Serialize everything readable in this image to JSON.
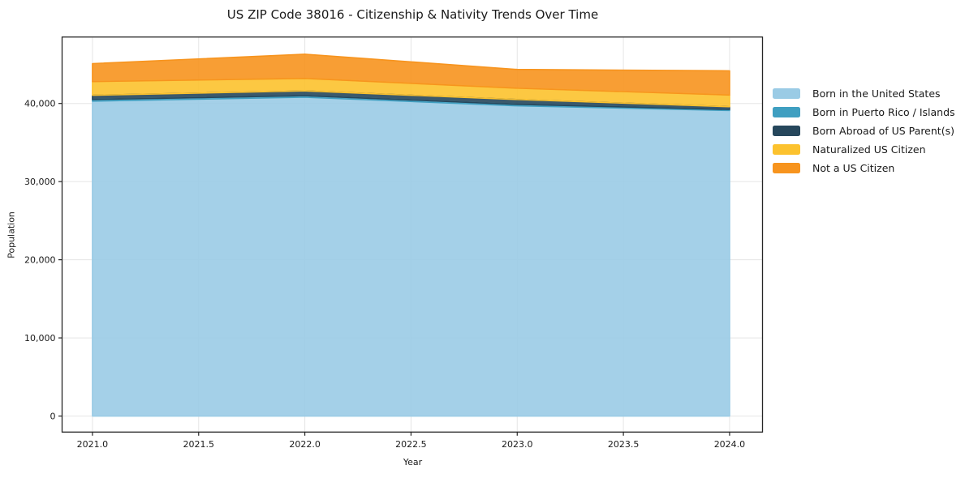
{
  "chart_data": {
    "type": "area",
    "stacked": true,
    "title": "US ZIP Code 38016 - Citizenship & Nativity Trends Over Time",
    "xlabel": "Year",
    "ylabel": "Population",
    "x": [
      2021,
      2022,
      2023,
      2024
    ],
    "series": [
      {
        "name": "Born in the United States",
        "color": "#9acbe5",
        "values": [
          40300,
          40800,
          39700,
          39100
        ]
      },
      {
        "name": "Born in Puerto Rico / Islands",
        "color": "#3f9fc1",
        "values": [
          200,
          200,
          180,
          130
        ]
      },
      {
        "name": "Born Abroad of US Parent(s)",
        "color": "#26475c",
        "values": [
          550,
          600,
          620,
          350
        ]
      },
      {
        "name": "Naturalized US Citizen",
        "color": "#fcc22e",
        "values": [
          1750,
          1600,
          1450,
          1500
        ]
      },
      {
        "name": "Not a US Citizen",
        "color": "#f7941e",
        "values": [
          2300,
          3100,
          2400,
          3100
        ]
      }
    ],
    "stack_totals": [
      45100,
      46300,
      44350,
      44180
    ],
    "x_tick_values": [
      2021,
      2021.5,
      2022,
      2022.5,
      2023,
      2023.5,
      2024
    ],
    "x_tick_labels": [
      "2021.0",
      "2021.5",
      "2022.0",
      "2022.5",
      "2023.0",
      "2023.5",
      "2024.0"
    ],
    "y_tick_values": [
      0,
      10000,
      20000,
      30000,
      40000
    ],
    "y_tick_labels": [
      "0",
      "10,000",
      "20,000",
      "30,000",
      "40,000"
    ],
    "xlim": [
      2020.857,
      2024.155
    ],
    "ylim": [
      -2050,
      48500
    ],
    "grid": true,
    "legend_position": "right-outside",
    "legend_entries": [
      "Born in the United States",
      "Born in Puerto Rico / Islands",
      "Born Abroad of US Parent(s)",
      "Naturalized US Citizen",
      "Not a US Citizen"
    ]
  },
  "style_colors": {
    "spine": "#262626",
    "grid": "#e5e5e5",
    "text": "#1a1a1a",
    "background": "#ffffff"
  }
}
